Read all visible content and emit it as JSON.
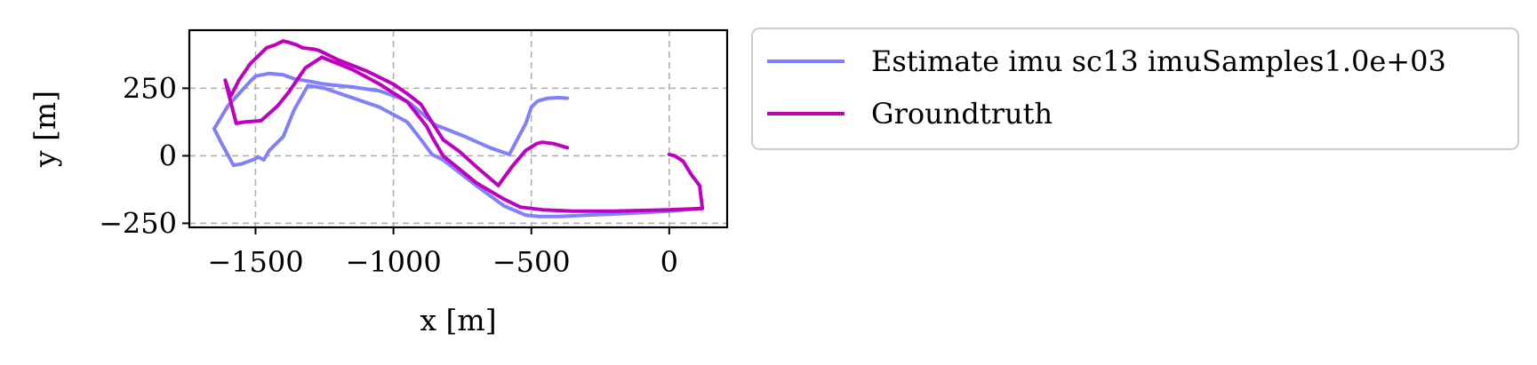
{
  "chart_data": {
    "type": "line",
    "title": "",
    "xlabel": "x [m]",
    "ylabel": "y [m]",
    "xlim": [
      -1740,
      210
    ],
    "ylim": [
      -265,
      465
    ],
    "xticks": [
      -1500,
      -1000,
      -500,
      0
    ],
    "xtick_labels": [
      "−1500",
      "−1000",
      "−500",
      "0"
    ],
    "yticks": [
      -250,
      0,
      250
    ],
    "ytick_labels": [
      "−250",
      "0",
      "250"
    ],
    "grid": true,
    "grid_style": "dashed",
    "legend_placement": "outside-top-right",
    "series": [
      {
        "name": "Estimate imu sc13 imuSamples1.0e+03",
        "color": "#7f7fff",
        "x": [
          -370,
          -400,
          -440,
          -470,
          -480,
          -500,
          -520,
          -580,
          -650,
          -750,
          -850,
          -900,
          -940,
          -980,
          -1050,
          -1150,
          -1250,
          -1300,
          -1360,
          -1400,
          -1450,
          -1500,
          -1520,
          -1560,
          -1600,
          -1650,
          -1620,
          -1580,
          -1550,
          -1510,
          -1490,
          -1470,
          -1450,
          -1400,
          -1360,
          -1310,
          -1250,
          -1150,
          -1050,
          -950,
          -900,
          -860,
          -820,
          -700,
          -600,
          -520,
          -470,
          -400,
          -300,
          -150,
          0,
          120
        ],
        "y": [
          213,
          215,
          213,
          205,
          200,
          180,
          120,
          5,
          30,
          75,
          115,
          160,
          195,
          215,
          240,
          255,
          265,
          275,
          285,
          300,
          305,
          295,
          275,
          230,
          185,
          100,
          40,
          -35,
          -30,
          -15,
          -5,
          -15,
          20,
          70,
          170,
          260,
          250,
          215,
          180,
          125,
          60,
          5,
          -15,
          -110,
          -185,
          -220,
          -225,
          -225,
          -220,
          -213,
          -205,
          -195
        ]
      },
      {
        "name": "Groundtruth",
        "color": "#bf00bf",
        "x": [
          -370,
          -420,
          -460,
          -480,
          -520,
          -570,
          -620,
          -700,
          -760,
          -820,
          -870,
          -900,
          -950,
          -1000,
          -1100,
          -1200,
          -1250,
          -1270,
          -1290,
          -1330,
          -1350,
          -1380,
          -1400,
          -1430,
          -1460,
          -1490,
          -1520,
          -1540,
          -1560,
          -1590,
          -1610,
          -1570,
          -1540,
          -1480,
          -1420,
          -1380,
          -1320,
          -1260,
          -1150,
          -1050,
          -950,
          -880,
          -860,
          -820,
          -700,
          -600,
          -540,
          -460,
          -350,
          -200,
          0,
          120,
          110,
          80,
          50,
          20,
          0
        ],
        "y": [
          30,
          45,
          50,
          45,
          20,
          -40,
          -110,
          -40,
          15,
          60,
          140,
          190,
          230,
          265,
          315,
          355,
          380,
          390,
          395,
          400,
          410,
          420,
          425,
          410,
          400,
          370,
          340,
          310,
          280,
          220,
          280,
          120,
          125,
          130,
          185,
          235,
          325,
          365,
          320,
          265,
          200,
          110,
          70,
          0,
          -100,
          -160,
          -190,
          -200,
          -205,
          -205,
          -200,
          -195,
          -110,
          -70,
          -20,
          0,
          5
        ]
      }
    ]
  }
}
